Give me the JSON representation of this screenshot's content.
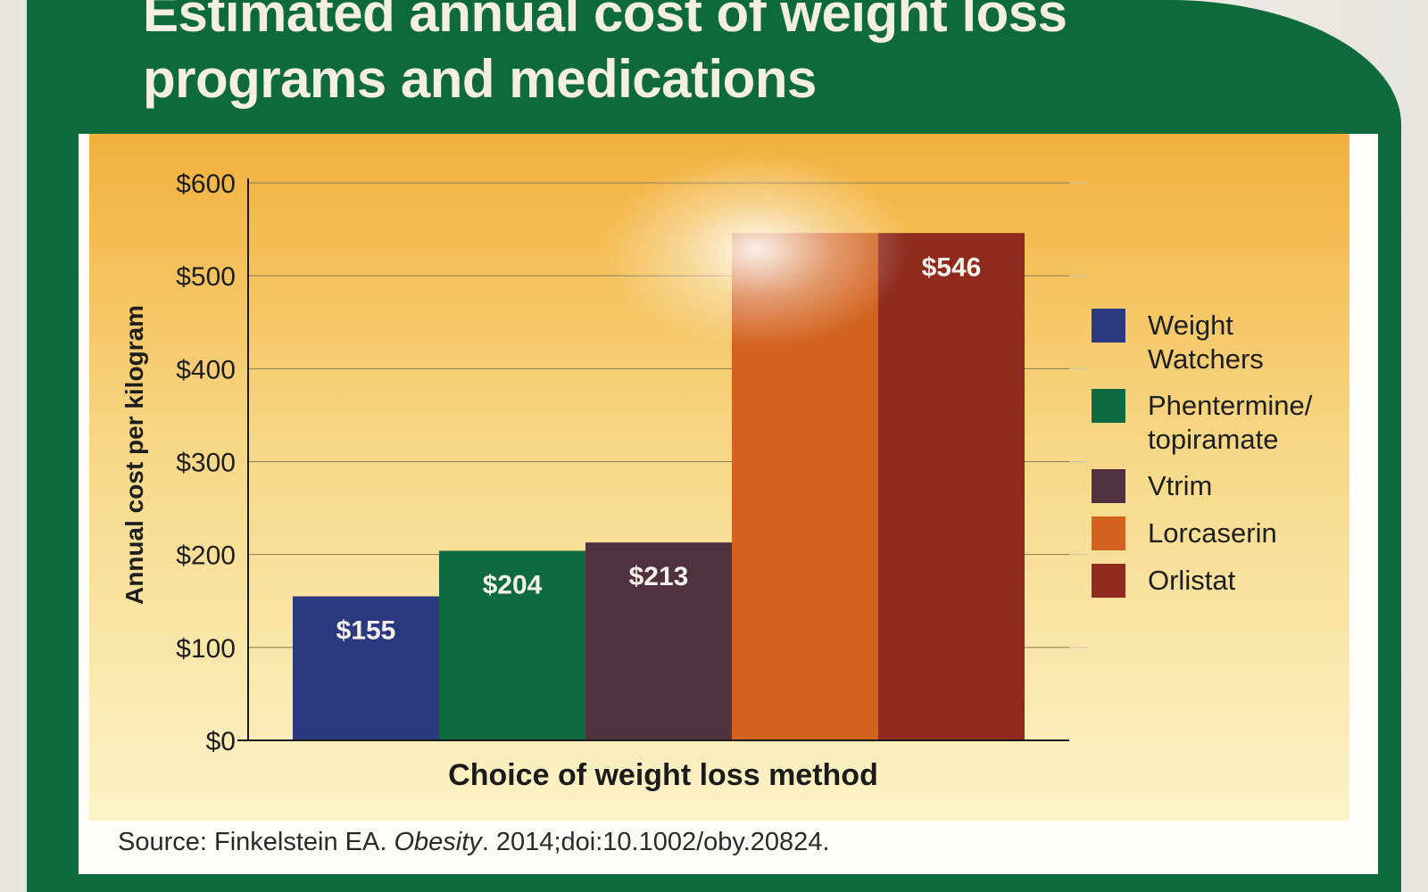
{
  "title": {
    "line1": "Estimated annual cost of weight loss",
    "line2": "programs and medications"
  },
  "source": {
    "prefix": "Source: Finkelstein EA. ",
    "journal": "Obesity",
    "suffix": ". 2014;doi:10.1002/oby.20824."
  },
  "colors": {
    "panel_green": "#0e6a3b",
    "plot_background_top": "#f2b03c",
    "plot_background_bottom": "#fbf3c8"
  },
  "chart_data": {
    "type": "bar",
    "title": "Estimated annual cost of weight loss programs and medications",
    "xlabel": "Choice of weight loss method",
    "ylabel": "Annual cost per kilogram",
    "ylim": [
      0,
      600
    ],
    "yticks": [
      0,
      100,
      200,
      300,
      400,
      500,
      600
    ],
    "ytick_labels": [
      "$0",
      "$100",
      "$200",
      "$300",
      "$400",
      "$500",
      "$600"
    ],
    "grid": true,
    "legend_position": "right",
    "categories": [
      "Weight Watchers",
      "Phentermine/topiramate",
      "Vtrim",
      "Lorcaserin",
      "Orlistat"
    ],
    "values": [
      155,
      204,
      213,
      546,
      546
    ],
    "data_labels": [
      "$155",
      "$204",
      "$213",
      "",
      "$546"
    ],
    "legend": [
      {
        "lines": [
          "Weight",
          "Watchers"
        ],
        "color": "#2b3a7e"
      },
      {
        "lines": [
          "Phentermine/",
          "topiramate"
        ],
        "color": "#0f6a41"
      },
      {
        "lines": [
          "Vtrim"
        ],
        "color": "#4f3140"
      },
      {
        "lines": [
          "Lorcaserin"
        ],
        "color": "#d3621f"
      },
      {
        "lines": [
          "Orlistat"
        ],
        "color": "#8e2b1e"
      }
    ]
  }
}
